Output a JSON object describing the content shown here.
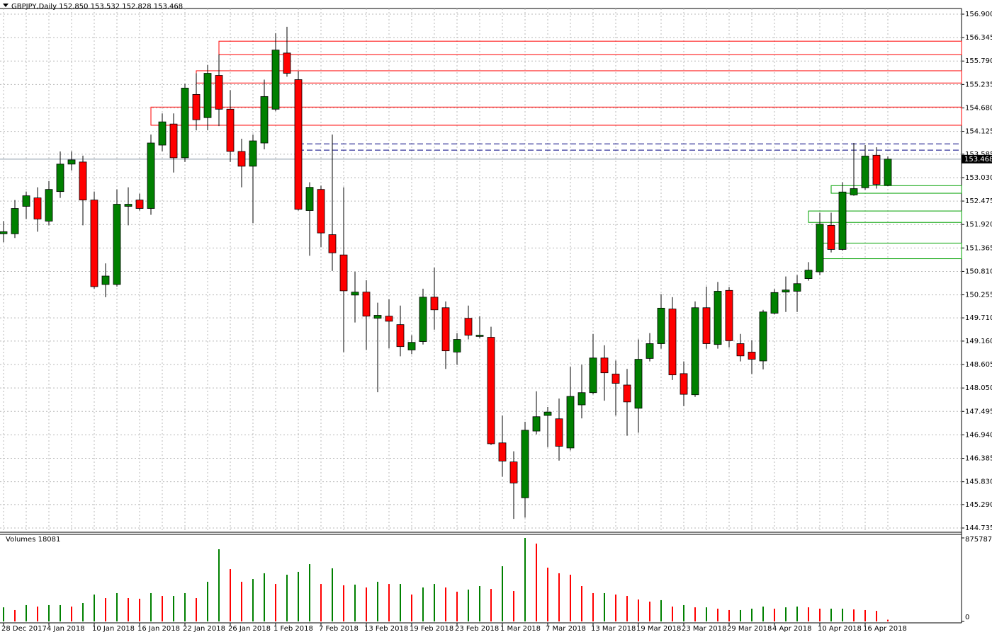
{
  "chart_data": {
    "type": "candlestick",
    "title": "GBPJPY,Daily 152.850 153.532 152.828 153.468",
    "categories": [
      "28 Dec 2017",
      null,
      null,
      null,
      "4 Jan 2018",
      null,
      null,
      null,
      "10 Jan 2018",
      null,
      null,
      null,
      "16 Jan 2018",
      null,
      null,
      null,
      "22 Jan 2018",
      null,
      null,
      null,
      "26 Jan 2018",
      null,
      null,
      null,
      "1 Feb 2018",
      null,
      null,
      null,
      "7 Feb 2018",
      null,
      null,
      null,
      "13 Feb 2018",
      null,
      null,
      null,
      "19 Feb 2018",
      null,
      null,
      null,
      "23 Feb 2018",
      null,
      null,
      null,
      "1 Mar 2018",
      null,
      null,
      null,
      "7 Mar 2018",
      null,
      null,
      null,
      "13 Mar 2018",
      null,
      null,
      null,
      "19 Mar 2018",
      null,
      null,
      null,
      "23 Mar 2018",
      null,
      null,
      null,
      "29 Mar 2018",
      null,
      null,
      null,
      "4 Apr 2018",
      null,
      null,
      null,
      "10 Apr 2018",
      null,
      null,
      null,
      "16 Apr 2018",
      null,
      null
    ],
    "open": [
      151.7,
      151.7,
      152.35,
      152.55,
      152.0,
      152.7,
      153.35,
      153.4,
      152.5,
      150.5,
      150.5,
      152.35,
      152.5,
      152.3,
      153.8,
      154.3,
      153.5,
      155.0,
      154.45,
      155.45,
      154.65,
      153.65,
      153.3,
      153.85,
      154.65,
      155.98,
      155.35,
      152.25,
      152.75,
      151.68,
      151.2,
      150.25,
      150.32,
      149.7,
      149.75,
      149.55,
      148.95,
      149.15,
      150.2,
      149.95,
      148.9,
      149.7,
      149.27,
      149.25,
      146.75,
      146.3,
      145.45,
      147.03,
      147.4,
      147.32,
      146.63,
      147.65,
      147.94,
      148.76,
      148.38,
      148.12,
      147.57,
      148.75,
      149.1,
      149.92,
      148.39,
      147.89,
      149.95,
      149.08,
      150.36,
      149.1,
      148.9,
      148.69,
      149.82,
      150.32,
      150.34,
      150.64,
      150.8,
      151.9,
      151.33,
      152.62,
      152.79,
      153.56,
      152.85
    ],
    "high": [
      152.0,
      152.5,
      152.7,
      152.8,
      152.95,
      153.65,
      153.65,
      153.55,
      152.7,
      151.0,
      152.75,
      152.8,
      152.65,
      154.05,
      154.55,
      154.55,
      155.25,
      155.5,
      155.7,
      155.95,
      155.1,
      153.95,
      154.05,
      155.35,
      156.45,
      156.6,
      155.55,
      152.92,
      152.84,
      154.05,
      152.8,
      150.8,
      150.6,
      150.07,
      150.15,
      150.0,
      149.3,
      150.4,
      150.9,
      150.1,
      149.35,
      150.0,
      149.75,
      149.5,
      147.4,
      146.55,
      147.25,
      147.97,
      147.6,
      147.8,
      148.55,
      148.6,
      149.33,
      149.06,
      148.7,
      148.5,
      149.2,
      149.35,
      150.27,
      150.2,
      148.68,
      150.1,
      150.45,
      150.56,
      150.44,
      149.33,
      149.18,
      149.9,
      150.39,
      150.69,
      150.72,
      151.03,
      152.2,
      152.2,
      152.92,
      153.85,
      153.8,
      153.75,
      153.532
    ],
    "low": [
      151.5,
      151.6,
      152.05,
      151.75,
      151.9,
      152.55,
      153.2,
      151.9,
      150.4,
      150.2,
      150.45,
      151.9,
      152.25,
      152.15,
      153.65,
      153.15,
      153.4,
      154.15,
      154.15,
      154.25,
      153.4,
      152.8,
      151.95,
      153.7,
      154.6,
      155.42,
      152.25,
      151.18,
      151.38,
      150.82,
      148.9,
      149.6,
      148.95,
      147.95,
      148.99,
      148.8,
      148.85,
      149.08,
      149.43,
      148.5,
      148.6,
      149.2,
      149.23,
      146.7,
      145.95,
      144.95,
      144.98,
      146.95,
      146.65,
      146.33,
      146.57,
      147.33,
      147.9,
      147.75,
      147.4,
      146.92,
      146.99,
      148.68,
      148.98,
      148.24,
      147.62,
      147.84,
      148.98,
      148.98,
      149.01,
      148.68,
      148.38,
      148.49,
      149.79,
      149.85,
      149.85,
      150.59,
      150.72,
      151.26,
      151.3,
      152.6,
      152.74,
      152.77,
      152.828
    ],
    "close": [
      151.75,
      152.3,
      152.6,
      152.05,
      152.75,
      153.35,
      153.45,
      152.5,
      150.45,
      150.7,
      152.4,
      152.4,
      152.3,
      153.85,
      154.35,
      153.5,
      155.15,
      154.4,
      155.5,
      154.65,
      153.65,
      153.3,
      153.9,
      154.95,
      156.05,
      155.5,
      152.28,
      152.8,
      151.72,
      151.25,
      150.35,
      150.32,
      149.75,
      149.77,
      149.63,
      149.03,
      149.13,
      150.2,
      149.9,
      148.93,
      149.2,
      149.3,
      149.3,
      146.73,
      146.32,
      145.8,
      147.05,
      147.37,
      147.48,
      146.67,
      147.85,
      147.94,
      148.76,
      148.41,
      148.16,
      147.72,
      148.73,
      149.1,
      149.94,
      148.36,
      147.9,
      149.95,
      149.1,
      150.34,
      149.17,
      148.81,
      148.73,
      149.85,
      150.31,
      150.37,
      150.52,
      150.84,
      151.93,
      151.33,
      152.69,
      152.77,
      153.54,
      152.87,
      153.468
    ],
    "up_color": "#008000",
    "down_color": "#ff0000",
    "ylim": [
      144.735,
      156.9
    ],
    "yticks": [
      {
        "value": 156.9,
        "label": "156.900"
      },
      {
        "value": 156.345,
        "label": "156.345"
      },
      {
        "value": 155.79,
        "label": "155.790"
      },
      {
        "value": 155.235,
        "label": "155.235"
      },
      {
        "value": 154.68,
        "label": "154.680"
      },
      {
        "value": 154.125,
        "label": "154.125"
      },
      {
        "value": 153.585,
        "label": "153.585"
      },
      {
        "value": 153.03,
        "label": "153.030"
      },
      {
        "value": 152.475,
        "label": "152.475"
      },
      {
        "value": 151.92,
        "label": "151.920"
      },
      {
        "value": 151.365,
        "label": "151.365"
      },
      {
        "value": 150.81,
        "label": "150.810"
      },
      {
        "value": 150.255,
        "label": "150.255"
      },
      {
        "value": 149.71,
        "label": "149.710"
      },
      {
        "value": 149.16,
        "label": "149.160"
      },
      {
        "value": 148.605,
        "label": "148.605"
      },
      {
        "value": 148.05,
        "label": "148.050"
      },
      {
        "value": 147.495,
        "label": "147.495"
      },
      {
        "value": 146.94,
        "label": "146.940"
      },
      {
        "value": 146.385,
        "label": "146.385"
      },
      {
        "value": 145.83,
        "label": "145.830"
      },
      {
        "value": 145.29,
        "label": "145.290"
      },
      {
        "value": 144.735,
        "label": "144.735"
      }
    ],
    "grid": true,
    "last_price": {
      "value": 153.468,
      "label": "153.468"
    },
    "zones": [
      {
        "start": 19,
        "top": 156.26,
        "bottom": 155.94,
        "color": "#ff0000"
      },
      {
        "start": 17,
        "top": 155.56,
        "bottom": 155.27,
        "color": "#ff0000"
      },
      {
        "start": 13,
        "top": 154.7,
        "bottom": 154.27,
        "color": "#ff0000"
      },
      {
        "start": 73,
        "top": 152.84,
        "bottom": 152.66,
        "color": "#00a000"
      },
      {
        "start": 71,
        "top": 152.24,
        "bottom": 151.97,
        "color": "#00a000"
      },
      {
        "start": 72,
        "top": 151.48,
        "bottom": 151.11,
        "color": "#00a000"
      }
    ],
    "levels": [
      {
        "start": 26,
        "price": 153.83,
        "color": "#000080"
      },
      {
        "start": 26,
        "price": 153.68,
        "color": "#000080"
      }
    ],
    "volume": {
      "title": "Volumes 18081",
      "values": [
        148000,
        119000,
        171000,
        156000,
        171000,
        171000,
        156000,
        193000,
        282000,
        245000,
        297000,
        245000,
        238000,
        297000,
        267000,
        267000,
        297000,
        245000,
        416000,
        757000,
        549000,
        416000,
        445000,
        505000,
        393000,
        490000,
        520000,
        601000,
        393000,
        557000,
        379000,
        386000,
        356000,
        416000,
        393000,
        393000,
        282000,
        356000,
        393000,
        356000,
        312000,
        334000,
        371000,
        341000,
        579000,
        319000,
        875787,
        816000,
        564000,
        505000,
        490000,
        371000,
        297000,
        297000,
        282000,
        267000,
        230000,
        208000,
        223000,
        156000,
        171000,
        148000,
        148000,
        134000,
        119000,
        119000,
        134000,
        156000,
        134000,
        148000,
        156000,
        148000,
        134000,
        134000,
        134000,
        126000,
        119000,
        111000,
        18081
      ],
      "up_color": "#008000",
      "down_color": "#ff0000",
      "ylim": [
        0,
        875787
      ],
      "yticks": [
        0,
        875787
      ]
    }
  }
}
